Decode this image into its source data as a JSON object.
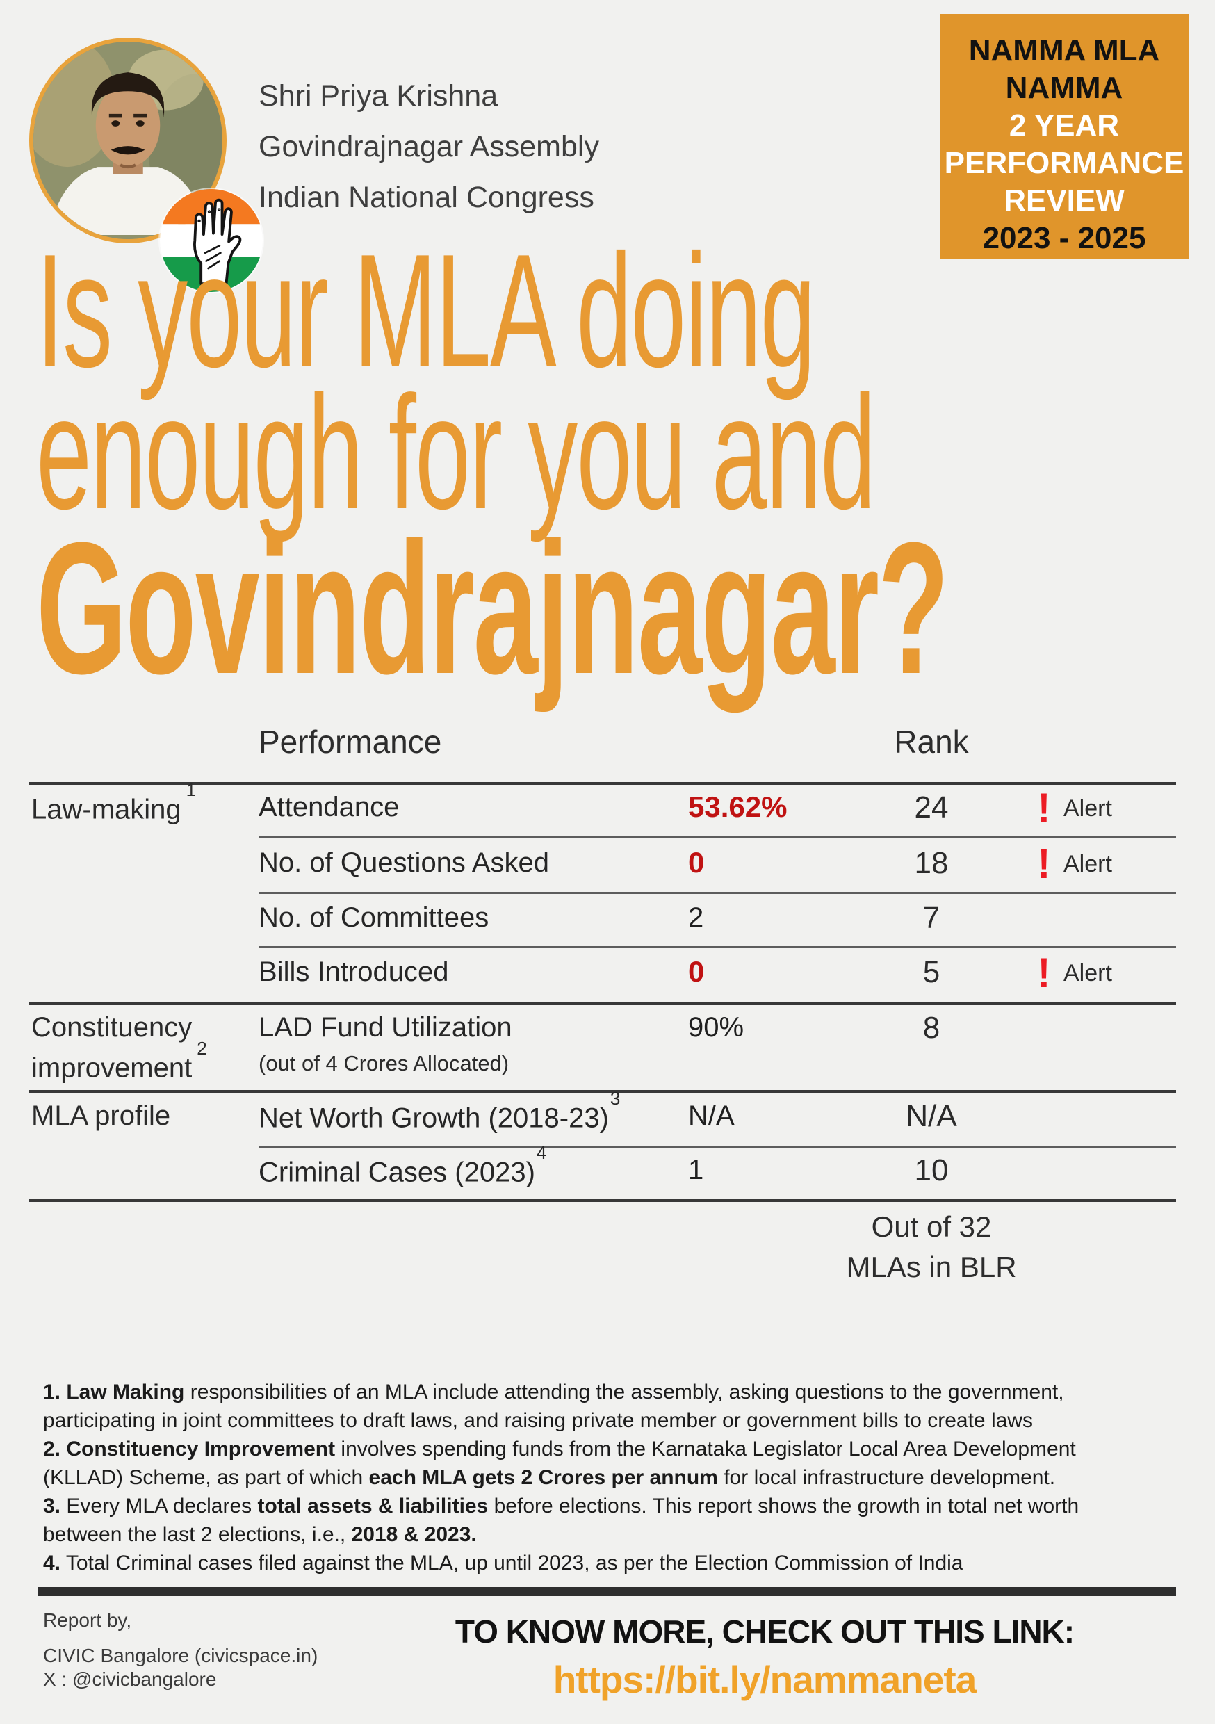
{
  "colors": {
    "background": "#F1F1EF",
    "badge_orange": "#E0952B",
    "headline_orange": "#E89A33",
    "link_orange": "#F0A229",
    "avatar_ring_orange": "#E8A33C",
    "value_red": "#C01212",
    "alert_red": "#EC1C24",
    "text_dark": "#2B2B2B",
    "footer_bar": "#2E2E2E",
    "inc_saffron": "#F47920",
    "inc_green": "#169B4A"
  },
  "profile": {
    "name": "Shri Priya Krishna",
    "constituency": "Govindrajnagar Assembly",
    "party": "Indian National Congress"
  },
  "badge": {
    "line1": "NAMMA MLA",
    "line2": "NAMMA",
    "line3": "2 YEAR",
    "line4": "PERFORMANCE",
    "line5": "REVIEW",
    "line6": "2023 - 2025"
  },
  "headline": {
    "line1": "Is your MLA doing",
    "line2": "enough for you and",
    "line3": "Govindrajnagar?"
  },
  "table": {
    "header": {
      "performance": "Performance",
      "rank": "Rank"
    },
    "alert_label": "Alert",
    "alert_glyph": "!",
    "categories": [
      {
        "label": "Law-making",
        "sup": "1"
      },
      {
        "line1": "Constituency",
        "line2": "improvement",
        "sup": "2"
      },
      {
        "label": "MLA profile"
      }
    ],
    "rows": [
      {
        "metric": "Attendance",
        "value": "53.62%",
        "value_red": true,
        "rank": "24",
        "alert": true
      },
      {
        "metric": "No. of Questions Asked",
        "value": "0",
        "value_red": true,
        "rank": "18",
        "alert": true
      },
      {
        "metric": "No. of Committees",
        "value": "2",
        "value_red": false,
        "rank": "7",
        "alert": false
      },
      {
        "metric": "Bills Introduced",
        "value": "0",
        "value_red": true,
        "rank": "5",
        "alert": true
      },
      {
        "metric": "LAD Fund Utilization",
        "metric_note": "(out of 4 Crores Allocated)",
        "value": "90%",
        "value_red": false,
        "rank": "8",
        "alert": false
      },
      {
        "metric": "Net Worth Growth (2018-23)",
        "sup": "3",
        "value": "N/A",
        "value_red": false,
        "rank": "N/A",
        "alert": false
      },
      {
        "metric": "Criminal Cases (2023)",
        "sup": "4",
        "value": "1",
        "value_red": false,
        "rank": "10",
        "alert": false
      }
    ],
    "summary": {
      "line1": "Out of 32",
      "line2": "MLAs in BLR"
    }
  },
  "footnotes": {
    "lines": [
      [
        {
          "t": "1. Law Making",
          "b": true
        },
        {
          "t": " responsibilities of an MLA include attending the assembly, asking questions to the government,",
          "b": false
        }
      ],
      [
        {
          "t": "participating in joint committees to draft laws, and raising private member or government bills to create laws",
          "b": false
        }
      ],
      [
        {
          "t": "2. Constituency Improvement",
          "b": true
        },
        {
          "t": " involves spending funds from the Karnataka Legislator Local Area Development",
          "b": false
        }
      ],
      [
        {
          "t": "(KLLAD) Scheme, as part of which ",
          "b": false
        },
        {
          "t": "each MLA gets 2 Crores per annum",
          "b": true
        },
        {
          "t": " for local infrastructure development.",
          "b": false
        }
      ],
      [
        {
          "t": "3.",
          "b": true
        },
        {
          "t": " Every MLA declares ",
          "b": false
        },
        {
          "t": "total assets & liabilities",
          "b": true
        },
        {
          "t": " before elections. This report shows the growth in total net worth",
          "b": false
        }
      ],
      [
        {
          "t": "between the last 2 elections, i.e., ",
          "b": false
        },
        {
          "t": "2018 & 2023.",
          "b": true
        }
      ],
      [
        {
          "t": "4.",
          "b": true
        },
        {
          "t": " Total Criminal cases filed against the MLA, up until 2023, as per the Election Commission of India",
          "b": false
        }
      ]
    ]
  },
  "footer": {
    "report_by": "Report by,",
    "org": "CIVIC Bangalore (civicspace.in)",
    "handle": "X : @civicbangalore",
    "cta": "TO KNOW MORE, CHECK OUT THIS LINK:",
    "link": "https://bit.ly/nammaneta"
  }
}
